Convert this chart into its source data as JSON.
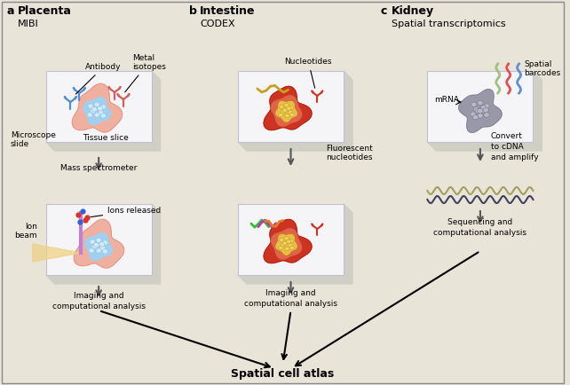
{
  "bg_color": "#e8e4d8",
  "slide_color": "#f0f0f5",
  "slide_edge_color": "#c8c8d8",
  "slide_shadow": "#d0cfc8",
  "panel_a": {
    "label": "a",
    "title": "Placenta",
    "subtitle": "MIBI",
    "slide1_labels": [
      "Antibody",
      "Metal\nisotopes",
      "Tissue slice",
      "Microscope\nslide"
    ],
    "arrow1_label": "Mass spectrometer",
    "slide2_labels": [
      "Ion\nbeam",
      "Ions released"
    ],
    "bottom_label": "Imaging and\ncomputational analysis"
  },
  "panel_b": {
    "label": "b",
    "title": "Intestine",
    "subtitle": "CODEX",
    "slide1_label": "Nucleotides",
    "arrow_label": "Fluorescent\nnucleotides",
    "bottom_label": "Imaging and\ncomputational analysis"
  },
  "panel_c": {
    "label": "c",
    "title": "Kidney",
    "subtitle": "Spatial transcriptomics",
    "labels": [
      "mRNA",
      "Spatial\nbarcodes"
    ],
    "arrow_label": "Convert\nto cDNA\nand amplify",
    "bottom_label": "Sequencing and\ncomputational analysis"
  },
  "bottom_label": "Spatial cell atlas",
  "tissue_pink_outer": "#f0b0a0",
  "tissue_pink_inner": "#f8d0c0",
  "tissue_blue": "#a0d0f0",
  "tissue_red_outer": "#cc3322",
  "tissue_red_inner": "#dd5544",
  "tissue_yellow": "#e8c040",
  "tissue_gray": "#b0b0b8",
  "antibody_blue": "#5090d0",
  "antibody_red": "#d06060",
  "nucleotide_yellow": "#d4a020",
  "nucleotide_red": "#cc3322",
  "barcode_colors": [
    "#a0c080",
    "#e05050",
    "#6090d0"
  ],
  "arrow_color": "#555555",
  "text_color": "#222222"
}
